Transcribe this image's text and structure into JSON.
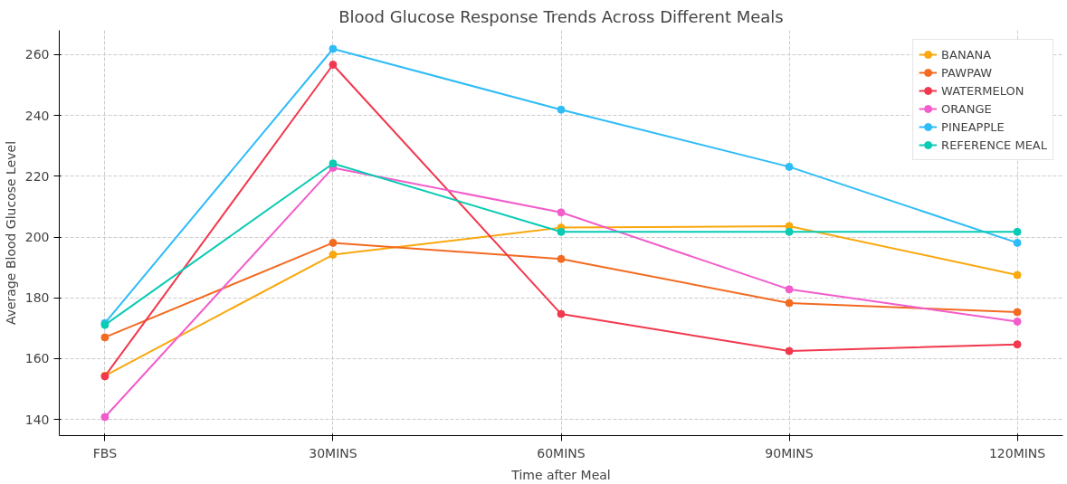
{
  "chart_data": {
    "type": "line",
    "title": "Blood Glucose Response Trends Across Different Meals",
    "xlabel": "Time after Meal",
    "ylabel": "Average Blood Glucose Level",
    "categories": [
      "FBS",
      "30MINS",
      "60MINS",
      "90MINS",
      "120MINS"
    ],
    "series": [
      {
        "name": "BANANA",
        "color": "#f9a80e",
        "values": [
          154.4,
          194.2,
          203.1,
          203.6,
          187.5
        ]
      },
      {
        "name": "PAWPAW",
        "color": "#f26b21",
        "values": [
          167,
          198.1,
          192.8,
          178.3,
          175.3
        ]
      },
      {
        "name": "WATERMELON",
        "color": "#f2384e",
        "values": [
          154.2,
          256.7,
          174.7,
          162.5,
          164.7
        ]
      },
      {
        "name": "ORANGE",
        "color": "#f25ccb",
        "values": [
          140.8,
          222.8,
          208.1,
          182.8,
          172.2
        ]
      },
      {
        "name": "PINEAPPLE",
        "color": "#2ebcf7",
        "values": [
          171.7,
          261.9,
          241.9,
          223.1,
          198.1
        ]
      },
      {
        "name": "REFERENCE MEAL",
        "color": "#0acbb3",
        "values": [
          171.1,
          224.2,
          201.7,
          201.7,
          201.7
        ]
      }
    ],
    "ylim": [
      134.7,
      268
    ],
    "yticks": [
      140,
      160,
      180,
      200,
      220,
      240,
      260
    ],
    "grid": true,
    "legend": "top right",
    "marker": "circle",
    "line_style": "solid"
  }
}
